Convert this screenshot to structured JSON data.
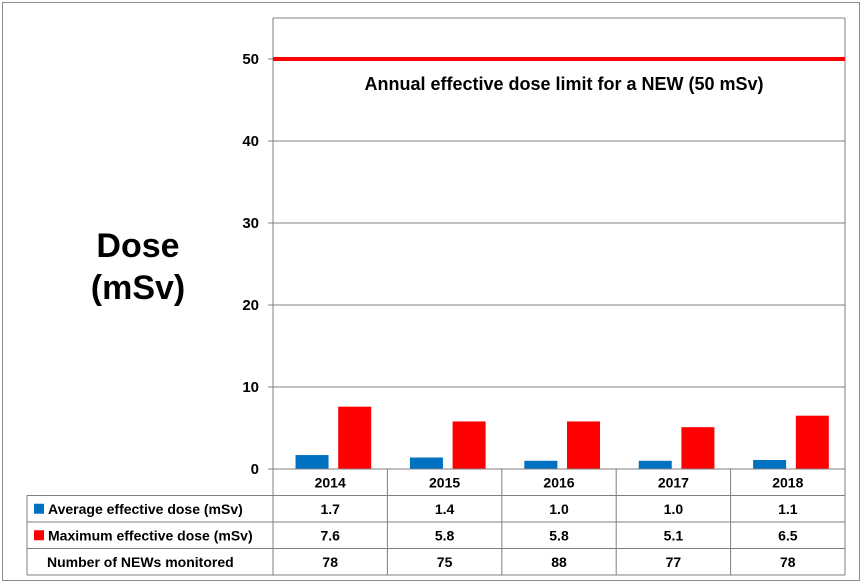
{
  "chart_data": {
    "type": "bar",
    "ylabel_line1": "Dose",
    "ylabel_line2": "(mSv)",
    "ylim": [
      0,
      55
    ],
    "yticks": [
      0,
      10,
      20,
      30,
      40,
      50
    ],
    "grid": true,
    "categories": [
      "2014",
      "2015",
      "2016",
      "2017",
      "2018"
    ],
    "series": [
      {
        "name": "Average effective dose (mSv)",
        "color": "#0070c0",
        "values": [
          1.7,
          1.4,
          1.0,
          1.0,
          1.1
        ],
        "labels": [
          "1.7",
          "1.4",
          "1.0",
          "1.0",
          "1.1"
        ]
      },
      {
        "name": "Maximum effective dose (mSv)",
        "color": "#ff0000",
        "values": [
          7.6,
          5.8,
          5.8,
          5.1,
          6.5
        ],
        "labels": [
          "7.6",
          "5.8",
          "5.8",
          "5.1",
          "6.5"
        ]
      }
    ],
    "reference_line": {
      "value": 50,
      "color": "#ff0000",
      "label": "Annual effective dose limit for a NEW (50 mSv)"
    },
    "table_extra_row": {
      "name": "Number of NEWs monitored",
      "values": [
        "78",
        "75",
        "88",
        "77",
        "78"
      ]
    }
  }
}
